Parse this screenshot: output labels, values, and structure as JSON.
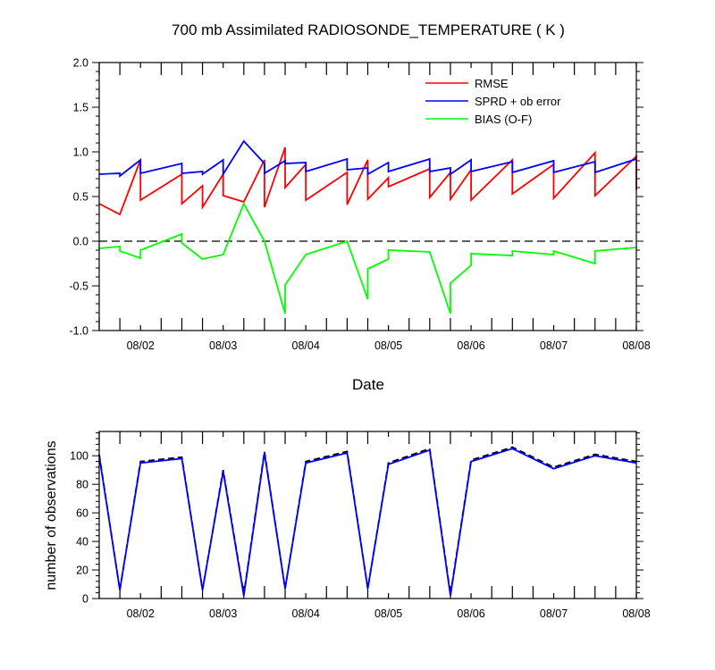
{
  "chart_data": [
    {
      "type": "line",
      "title": "700 mb Assimilated RADIOSONDE_TEMPERATURE ( K )",
      "xlabel": "Date",
      "ylabel": "",
      "x_unit": "day of August",
      "xlim": [
        1.5,
        8.0
      ],
      "ylim": [
        -1.0,
        2.0
      ],
      "x_ticks": [
        2,
        3,
        4,
        5,
        6,
        7,
        8
      ],
      "x_tick_labels": [
        "08/02",
        "08/03",
        "08/04",
        "08/05",
        "08/06",
        "08/07",
        "08/08"
      ],
      "y_ticks": [
        -1.0,
        -0.5,
        0.0,
        0.5,
        1.0,
        1.5,
        2.0
      ],
      "y_tick_labels": [
        "-1.0",
        "-0.5",
        "0.0",
        "0.5",
        "1.0",
        "1.5",
        "2.0"
      ],
      "zero_line": true,
      "legend_position": "top-right",
      "series": [
        {
          "name": "RMSE",
          "color": "#ff0000",
          "points": [
            [
              1.5,
              0.42
            ],
            [
              1.75,
              0.3
            ],
            [
              2.0,
              0.91
            ],
            [
              2.0,
              0.46
            ],
            [
              2.5,
              0.75
            ],
            [
              2.5,
              0.42
            ],
            [
              2.75,
              0.62
            ],
            [
              2.75,
              0.38
            ],
            [
              3.0,
              0.75
            ],
            [
              3.0,
              0.51
            ],
            [
              3.25,
              0.44
            ],
            [
              3.5,
              0.91
            ],
            [
              3.5,
              0.38
            ],
            [
              3.75,
              1.05
            ],
            [
              3.75,
              0.6
            ],
            [
              4.0,
              0.86
            ],
            [
              4.0,
              0.46
            ],
            [
              4.5,
              0.77
            ],
            [
              4.5,
              0.41
            ],
            [
              4.75,
              0.91
            ],
            [
              4.75,
              0.47
            ],
            [
              5.0,
              0.71
            ],
            [
              5.0,
              0.61
            ],
            [
              5.5,
              0.81
            ],
            [
              5.5,
              0.49
            ],
            [
              5.75,
              0.77
            ],
            [
              5.75,
              0.47
            ],
            [
              6.0,
              0.8
            ],
            [
              6.0,
              0.46
            ],
            [
              6.5,
              0.91
            ],
            [
              6.5,
              0.53
            ],
            [
              7.0,
              0.86
            ],
            [
              7.0,
              0.48
            ],
            [
              7.5,
              0.99
            ],
            [
              7.5,
              0.51
            ],
            [
              8.0,
              0.95
            ],
            [
              8.0,
              0.57
            ]
          ]
        },
        {
          "name": "SPRD + ob error",
          "color": "#0000ff",
          "points": [
            [
              1.5,
              0.75
            ],
            [
              1.75,
              0.76
            ],
            [
              1.75,
              0.73
            ],
            [
              2.0,
              0.91
            ],
            [
              2.0,
              0.76
            ],
            [
              2.5,
              0.87
            ],
            [
              2.5,
              0.76
            ],
            [
              2.75,
              0.78
            ],
            [
              2.75,
              0.75
            ],
            [
              3.0,
              0.91
            ],
            [
              3.0,
              0.75
            ],
            [
              3.25,
              1.12
            ],
            [
              3.5,
              0.87
            ],
            [
              3.5,
              0.76
            ],
            [
              3.75,
              0.9
            ],
            [
              3.75,
              0.87
            ],
            [
              4.0,
              0.88
            ],
            [
              4.0,
              0.78
            ],
            [
              4.5,
              0.92
            ],
            [
              4.5,
              0.8
            ],
            [
              4.75,
              0.82
            ],
            [
              4.75,
              0.75
            ],
            [
              5.0,
              0.88
            ],
            [
              5.0,
              0.78
            ],
            [
              5.5,
              0.92
            ],
            [
              5.5,
              0.78
            ],
            [
              5.75,
              0.82
            ],
            [
              5.75,
              0.75
            ],
            [
              6.0,
              0.91
            ],
            [
              6.0,
              0.78
            ],
            [
              6.5,
              0.89
            ],
            [
              6.5,
              0.77
            ],
            [
              7.0,
              0.9
            ],
            [
              7.0,
              0.77
            ],
            [
              7.5,
              0.89
            ],
            [
              7.5,
              0.77
            ],
            [
              8.0,
              0.92
            ]
          ]
        },
        {
          "name": "BIAS (O-F)",
          "color": "#00ff00",
          "points": [
            [
              1.5,
              -0.08
            ],
            [
              1.75,
              -0.06
            ],
            [
              1.75,
              -0.11
            ],
            [
              2.0,
              -0.19
            ],
            [
              2.0,
              -0.1
            ],
            [
              2.5,
              0.08
            ],
            [
              2.5,
              -0.02
            ],
            [
              2.75,
              -0.2
            ],
            [
              3.0,
              -0.15
            ],
            [
              3.25,
              0.42
            ],
            [
              3.5,
              0.0
            ],
            [
              3.75,
              -0.81
            ],
            [
              3.75,
              -0.49
            ],
            [
              4.0,
              -0.15
            ],
            [
              4.5,
              0.0
            ],
            [
              4.75,
              -0.65
            ],
            [
              4.75,
              -0.31
            ],
            [
              5.0,
              -0.2
            ],
            [
              5.0,
              -0.1
            ],
            [
              5.5,
              -0.12
            ],
            [
              5.75,
              -0.81
            ],
            [
              5.75,
              -0.47
            ],
            [
              6.0,
              -0.27
            ],
            [
              6.0,
              -0.14
            ],
            [
              6.5,
              -0.16
            ],
            [
              6.5,
              -0.11
            ],
            [
              7.0,
              -0.15
            ],
            [
              7.0,
              -0.11
            ],
            [
              7.5,
              -0.25
            ],
            [
              7.5,
              -0.11
            ],
            [
              8.0,
              -0.07
            ]
          ]
        }
      ]
    },
    {
      "type": "line",
      "title": "",
      "xlabel": "",
      "ylabel": "number of observations",
      "x_unit": "day of August",
      "xlim": [
        1.5,
        8.0
      ],
      "ylim": [
        0,
        117
      ],
      "x_ticks": [
        2,
        3,
        4,
        5,
        6,
        7,
        8
      ],
      "x_tick_labels": [
        "08/02",
        "08/03",
        "08/04",
        "08/05",
        "08/06",
        "08/07",
        "08/08"
      ],
      "y_ticks": [
        0,
        20,
        40,
        60,
        80,
        100
      ],
      "y_tick_labels": [
        "0",
        "20",
        "40",
        "60",
        "80",
        "100"
      ],
      "series": [
        {
          "color": "#000000",
          "dash": true,
          "points": [
            [
              1.5,
              101
            ],
            [
              1.75,
              6
            ],
            [
              2.0,
              96
            ],
            [
              2.5,
              99
            ],
            [
              2.75,
              6
            ],
            [
              3.0,
              90
            ],
            [
              3.25,
              3
            ],
            [
              3.5,
              103
            ],
            [
              3.75,
              7
            ],
            [
              4.0,
              96
            ],
            [
              4.5,
              103
            ],
            [
              4.75,
              7
            ],
            [
              5.0,
              95
            ],
            [
              5.5,
              105
            ],
            [
              5.75,
              3
            ],
            [
              6.0,
              97
            ],
            [
              6.5,
              106
            ],
            [
              7.0,
              92
            ],
            [
              7.5,
              101
            ],
            [
              8.0,
              96
            ]
          ]
        },
        {
          "color": "#0000ff",
          "dash": false,
          "points": [
            [
              1.5,
              100
            ],
            [
              1.75,
              6
            ],
            [
              2.0,
              95
            ],
            [
              2.5,
              98
            ],
            [
              2.75,
              6
            ],
            [
              3.0,
              89
            ],
            [
              3.25,
              2
            ],
            [
              3.5,
              102
            ],
            [
              3.75,
              7
            ],
            [
              4.0,
              95
            ],
            [
              4.5,
              102
            ],
            [
              4.75,
              7
            ],
            [
              5.0,
              94
            ],
            [
              5.5,
              104
            ],
            [
              5.75,
              2
            ],
            [
              6.0,
              96
            ],
            [
              6.5,
              105
            ],
            [
              7.0,
              91
            ],
            [
              7.5,
              100
            ],
            [
              8.0,
              95
            ]
          ]
        }
      ]
    }
  ]
}
